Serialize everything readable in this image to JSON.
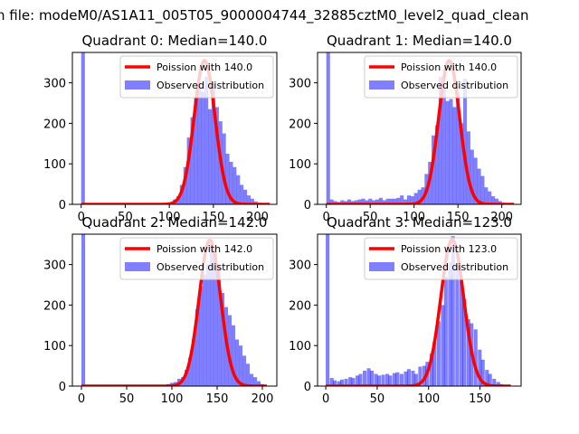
{
  "figure": {
    "suptitle": "n file: modeM0/AS1A11_005T05_9000004744_32885cztM0_level2_quad_clean"
  },
  "colors": {
    "hist": "#0000ff",
    "poisson": "#ff0000",
    "frame": "#000000"
  },
  "chart_data": [
    {
      "type": "bar",
      "title": "Quadrant 0: Median=140.0",
      "xlabel": "",
      "ylabel": "",
      "xlim": [
        -10,
        222
      ],
      "ylim": [
        0,
        375
      ],
      "xticks": [
        0,
        50,
        100,
        150,
        200
      ],
      "yticks": [
        0,
        100,
        200,
        300
      ],
      "legend": {
        "placement": "top-right",
        "entries": [
          "Poission with 140.0",
          "Observed distribution"
        ]
      },
      "poisson": {
        "label": "Poission with 140.0",
        "mean": 140.0,
        "peak": 355,
        "sigma": 11.9,
        "x_range": [
          0,
          214
        ]
      },
      "hist": {
        "label": "Observed distribution",
        "bin_width": 4.2,
        "bins": [
          [
            0,
            375
          ],
          [
            100,
            5
          ],
          [
            104,
            12
          ],
          [
            108,
            20
          ],
          [
            112,
            48
          ],
          [
            116,
            92
          ],
          [
            120,
            165
          ],
          [
            124,
            215
          ],
          [
            128,
            262
          ],
          [
            132,
            300
          ],
          [
            136,
            278
          ],
          [
            140,
            315
          ],
          [
            144,
            235
          ],
          [
            148,
            300
          ],
          [
            152,
            240
          ],
          [
            156,
            205
          ],
          [
            160,
            175
          ],
          [
            164,
            125
          ],
          [
            168,
            105
          ],
          [
            172,
            92
          ],
          [
            176,
            72
          ],
          [
            180,
            48
          ],
          [
            184,
            36
          ],
          [
            188,
            22
          ],
          [
            192,
            14
          ],
          [
            196,
            7
          ],
          [
            200,
            4
          ]
        ]
      }
    },
    {
      "type": "bar",
      "title": "Quadrant 1: Median=140.0",
      "xlabel": "",
      "ylabel": "",
      "xlim": [
        -10,
        222
      ],
      "ylim": [
        0,
        375
      ],
      "xticks": [
        0,
        50,
        100,
        150,
        200
      ],
      "yticks": [
        0,
        100,
        200,
        300
      ],
      "legend": {
        "placement": "top-right",
        "entries": [
          "Poission with 140.0",
          "Observed distribution"
        ]
      },
      "poisson": {
        "label": "Poission with 140.0",
        "mean": 140.0,
        "peak": 355,
        "sigma": 11.9,
        "x_range": [
          0,
          214
        ]
      },
      "hist": {
        "label": "Observed distribution",
        "bin_width": 4.2,
        "bins": [
          [
            0,
            375
          ],
          [
            4,
            12
          ],
          [
            8,
            8
          ],
          [
            12,
            6
          ],
          [
            16,
            10
          ],
          [
            20,
            8
          ],
          [
            24,
            12
          ],
          [
            28,
            8
          ],
          [
            32,
            10
          ],
          [
            36,
            12
          ],
          [
            40,
            14
          ],
          [
            44,
            10
          ],
          [
            48,
            14
          ],
          [
            52,
            10
          ],
          [
            56,
            12
          ],
          [
            60,
            16
          ],
          [
            64,
            10
          ],
          [
            68,
            14
          ],
          [
            72,
            14
          ],
          [
            76,
            14
          ],
          [
            80,
            16
          ],
          [
            84,
            22
          ],
          [
            88,
            12
          ],
          [
            92,
            22
          ],
          [
            96,
            20
          ],
          [
            100,
            28
          ],
          [
            104,
            36
          ],
          [
            108,
            42
          ],
          [
            112,
            75
          ],
          [
            116,
            105
          ],
          [
            120,
            170
          ],
          [
            124,
            195
          ],
          [
            128,
            315
          ],
          [
            132,
            285
          ],
          [
            136,
            255
          ],
          [
            140,
            260
          ],
          [
            144,
            240
          ],
          [
            148,
            275
          ],
          [
            152,
            200
          ],
          [
            156,
            310
          ],
          [
            160,
            180
          ],
          [
            164,
            135
          ],
          [
            168,
            115
          ],
          [
            172,
            88
          ],
          [
            176,
            70
          ],
          [
            180,
            42
          ],
          [
            184,
            32
          ],
          [
            188,
            20
          ],
          [
            192,
            14
          ],
          [
            196,
            8
          ],
          [
            200,
            4
          ]
        ]
      }
    },
    {
      "type": "bar",
      "title": "Quadrant 2: Median=142.0",
      "xlabel": "",
      "ylabel": "",
      "xlim": [
        -10,
        216
      ],
      "ylim": [
        0,
        375
      ],
      "xticks": [
        0,
        50,
        100,
        150,
        200
      ],
      "yticks": [
        0,
        100,
        200,
        300
      ],
      "legend": {
        "placement": "top-right",
        "entries": [
          "Poission with 142.0",
          "Observed distribution"
        ]
      },
      "poisson": {
        "label": "Poission with 142.0",
        "mean": 142.0,
        "peak": 360,
        "sigma": 11.9,
        "x_range": [
          0,
          205
        ]
      },
      "hist": {
        "label": "Observed distribution",
        "bin_width": 4.1,
        "bins": [
          [
            0,
            375
          ],
          [
            90,
            3
          ],
          [
            94,
            5
          ],
          [
            98,
            8
          ],
          [
            102,
            10
          ],
          [
            106,
            18
          ],
          [
            110,
            22
          ],
          [
            114,
            40
          ],
          [
            118,
            70
          ],
          [
            122,
            115
          ],
          [
            126,
            190
          ],
          [
            130,
            245
          ],
          [
            134,
            275
          ],
          [
            138,
            300
          ],
          [
            142,
            350
          ],
          [
            146,
            330
          ],
          [
            150,
            300
          ],
          [
            154,
            230
          ],
          [
            158,
            195
          ],
          [
            162,
            175
          ],
          [
            166,
            150
          ],
          [
            170,
            115
          ],
          [
            174,
            100
          ],
          [
            178,
            75
          ],
          [
            182,
            55
          ],
          [
            186,
            30
          ],
          [
            190,
            22
          ],
          [
            194,
            12
          ],
          [
            198,
            5
          ]
        ]
      }
    },
    {
      "type": "bar",
      "title": "Quadrant 3: Median=123.0",
      "xlabel": "",
      "ylabel": "",
      "xlim": [
        -8,
        190
      ],
      "ylim": [
        0,
        375
      ],
      "xticks": [
        0,
        50,
        100,
        150
      ],
      "yticks": [
        0,
        100,
        200,
        300
      ],
      "legend": {
        "placement": "top-right",
        "entries": [
          "Poission with 123.0",
          "Observed distribution"
        ]
      },
      "poisson": {
        "label": "Poission with 123.0",
        "mean": 123.0,
        "peak": 362,
        "sigma": 11.1,
        "x_range": [
          0,
          180
        ]
      },
      "hist": {
        "label": "Observed distribution",
        "bin_width": 3.6,
        "bins": [
          [
            0,
            375
          ],
          [
            4,
            20
          ],
          [
            7,
            14
          ],
          [
            11,
            12
          ],
          [
            14,
            16
          ],
          [
            18,
            18
          ],
          [
            22,
            22
          ],
          [
            25,
            20
          ],
          [
            29,
            26
          ],
          [
            32,
            30
          ],
          [
            36,
            38
          ],
          [
            40,
            44
          ],
          [
            43,
            38
          ],
          [
            47,
            30
          ],
          [
            50,
            26
          ],
          [
            54,
            28
          ],
          [
            58,
            30
          ],
          [
            61,
            26
          ],
          [
            65,
            32
          ],
          [
            68,
            34
          ],
          [
            72,
            30
          ],
          [
            76,
            36
          ],
          [
            79,
            42
          ],
          [
            83,
            38
          ],
          [
            86,
            30
          ],
          [
            90,
            48
          ],
          [
            94,
            50
          ],
          [
            97,
            60
          ],
          [
            101,
            80
          ],
          [
            104,
            110
          ],
          [
            108,
            160
          ],
          [
            112,
            200
          ],
          [
            115,
            270
          ],
          [
            119,
            305
          ],
          [
            122,
            370
          ],
          [
            126,
            300
          ],
          [
            130,
            260
          ],
          [
            133,
            215
          ],
          [
            137,
            165
          ],
          [
            140,
            155
          ],
          [
            144,
            140
          ],
          [
            148,
            90
          ],
          [
            151,
            65
          ],
          [
            155,
            40
          ],
          [
            158,
            30
          ],
          [
            162,
            18
          ],
          [
            166,
            10
          ],
          [
            169,
            5
          ]
        ]
      }
    }
  ]
}
